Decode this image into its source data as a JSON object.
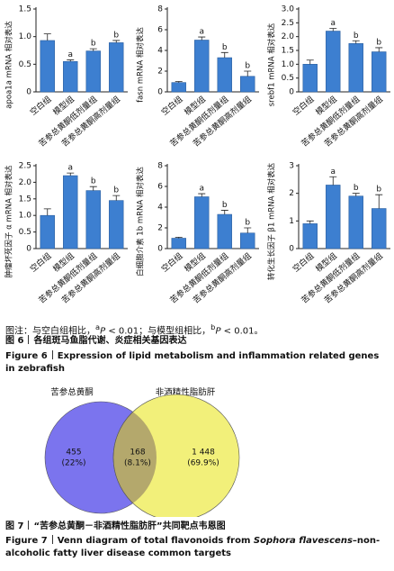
{
  "chart_data": [
    {
      "type": "bar",
      "ylabel": "apoa1a mRNA 相对表达",
      "categories": [
        "空白组",
        "模型组",
        "苦参总黄酮低剂量组",
        "苦参总黄酮高剂量组"
      ],
      "values": [
        0.93,
        0.55,
        0.74,
        0.89
      ],
      "errors": [
        0.12,
        0.03,
        0.04,
        0.04
      ],
      "annotations": [
        null,
        "a",
        "b",
        "b"
      ],
      "color": "#3d7fd0",
      "ylim": [
        0,
        1.5
      ],
      "yticks": [
        0,
        0.5,
        {
          "value": 1,
          "label": "1.0"
        },
        1.5
      ]
    },
    {
      "type": "bar",
      "ylabel": "fasn mRNA 相对表达",
      "categories": [
        "空白组",
        "模型组",
        "苦参总黄酮低剂量组",
        "苦参总黄酮高剂量组"
      ],
      "values": [
        0.9,
        5.0,
        3.3,
        1.5
      ],
      "errors": [
        0.1,
        0.3,
        0.5,
        0.5
      ],
      "annotations": [
        null,
        "a",
        "b",
        "b"
      ],
      "color": "#3d7fd0",
      "ylim": [
        0,
        8
      ],
      "yticks": [
        0,
        2,
        4,
        6,
        8
      ]
    },
    {
      "type": "bar",
      "ylabel": "srebf1 mRNA 相对表达",
      "categories": [
        "空白组",
        "模型组",
        "苦参总黄酮低剂量组",
        "苦参总黄酮高剂量组"
      ],
      "values": [
        1.0,
        2.2,
        1.75,
        1.45
      ],
      "errors": [
        0.15,
        0.1,
        0.1,
        0.15
      ],
      "annotations": [
        null,
        "a",
        "b",
        "b"
      ],
      "color": "#3d7fd0",
      "ylim": [
        0,
        3
      ],
      "yticks": [
        0,
        0.5,
        {
          "value": 1,
          "label": "1.0"
        },
        1.5,
        {
          "value": 2,
          "label": "2.0"
        },
        2.5,
        {
          "value": 3,
          "label": "3.0"
        }
      ]
    },
    {
      "type": "bar",
      "ylabel": "肿瘤坏死因子 α mRNA 相对表达",
      "categories": [
        "空白组",
        "模型组",
        "苦参总黄酮低剂量组",
        "苦参总黄酮高剂量组"
      ],
      "values": [
        1.0,
        2.2,
        1.75,
        1.45
      ],
      "errors": [
        0.2,
        0.08,
        0.12,
        0.15
      ],
      "annotations": [
        null,
        "a",
        "b",
        "b"
      ],
      "color": "#3d7fd0",
      "ylim": [
        0,
        2.5
      ],
      "yticks": [
        0,
        0.5,
        {
          "value": 1,
          "label": "1.0"
        },
        1.5,
        {
          "value": 2,
          "label": "2.0"
        },
        2.5
      ]
    },
    {
      "type": "bar",
      "ylabel": "白细胞介素 1b mRNA 相对表达",
      "categories": [
        "空白组",
        "模型组",
        "苦参总黄酮低剂量组",
        "苦参总黄酮高剂量组"
      ],
      "values": [
        1.0,
        5.0,
        3.3,
        1.5
      ],
      "errors": [
        0.1,
        0.3,
        0.4,
        0.5
      ],
      "annotations": [
        null,
        "a",
        "b",
        "b"
      ],
      "color": "#3d7fd0",
      "ylim": [
        0,
        8
      ],
      "yticks": [
        0,
        2,
        4,
        6,
        8
      ]
    },
    {
      "type": "bar",
      "ylabel": "转化生长因子 β1 mRNA 相对表达",
      "categories": [
        "空白组",
        "模型组",
        "苦参总黄酮低剂量组",
        "苦参总黄酮高剂量组"
      ],
      "values": [
        0.9,
        2.3,
        1.9,
        1.45
      ],
      "errors": [
        0.1,
        0.3,
        0.1,
        0.5
      ],
      "annotations": [
        null,
        "a",
        "b",
        "b"
      ],
      "color": "#3d7fd0",
      "ylim": [
        0,
        3
      ],
      "yticks": [
        0,
        1,
        2,
        3
      ]
    },
    {
      "type": "venn",
      "sets": [
        "苦参总黄酮",
        "非酒精性脂肪肝"
      ],
      "regions": [
        "left",
        "both",
        "right"
      ],
      "values": [
        455,
        168,
        1448
      ],
      "value_labels": [
        "455",
        "168",
        "1 448"
      ],
      "percents": [
        22,
        8.1,
        69.9
      ],
      "percent_labels": [
        "(22%)",
        "(8.1%)",
        "(69.9%)"
      ],
      "colors": [
        "#7b74ee",
        "#b4a86c",
        "#f2f07a"
      ]
    }
  ],
  "note_parts": [
    "图注：与空白组相比，",
    "a",
    "P",
    " < 0.01；与模型组相比，",
    "b",
    "P",
    " < 0.01。"
  ],
  "figure6": {
    "label_zh": "图 6",
    "title_zh": "各组斑马鱼脂代谢、炎症相关基因表达",
    "label_en": "Figure 6",
    "title_en": "Expression of lipid metabolism and inflammation related genes in zebrafish"
  },
  "figure7": {
    "label_zh": "图 7",
    "title_zh": "“苦参总黄酮－非酒精性脂肪肝”共同靶点韦恩图",
    "label_en": "Figure 7",
    "title_en_parts": [
      "Venn diagram of total flavonoids from ",
      "Sophora flavescens",
      "–non-alcoholic fatty liver disease common targets"
    ]
  }
}
